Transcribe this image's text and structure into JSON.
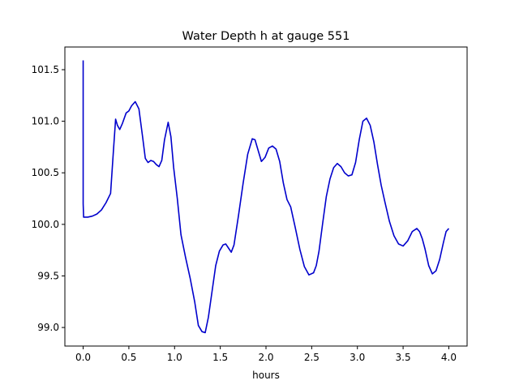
{
  "chart_data": {
    "type": "line",
    "title": "Water Depth h at gauge 551",
    "xlabel": "hours",
    "ylabel": "",
    "xlim": [
      -0.2,
      4.2
    ],
    "ylim": [
      98.82,
      101.72
    ],
    "xticks": [
      0.0,
      0.5,
      1.0,
      1.5,
      2.0,
      2.5,
      3.0,
      3.5,
      4.0
    ],
    "xtick_labels": [
      "0.0",
      "0.5",
      "1.0",
      "1.5",
      "2.0",
      "2.5",
      "3.0",
      "3.5",
      "4.0"
    ],
    "yticks": [
      99.0,
      99.5,
      100.0,
      100.5,
      101.0,
      101.5
    ],
    "ytick_labels": [
      "99.0",
      "99.5",
      "100.0",
      "100.5",
      "101.0",
      "101.5"
    ],
    "grid": false,
    "line_color": "#0000cc",
    "series": [
      {
        "x": [
          0.0,
          0.0,
          0.005,
          0.05,
          0.1,
          0.15,
          0.2,
          0.25,
          0.3,
          0.33,
          0.355,
          0.375,
          0.4,
          0.43,
          0.47,
          0.5,
          0.53,
          0.57,
          0.61,
          0.65,
          0.68,
          0.71,
          0.74,
          0.77,
          0.8,
          0.83,
          0.86,
          0.89,
          0.93,
          0.96,
          0.99,
          1.03,
          1.07,
          1.12,
          1.17,
          1.22,
          1.26,
          1.3,
          1.335,
          1.37,
          1.41,
          1.45,
          1.49,
          1.53,
          1.56,
          1.59,
          1.62,
          1.65,
          1.7,
          1.75,
          1.8,
          1.85,
          1.88,
          1.91,
          1.95,
          1.99,
          2.03,
          2.07,
          2.11,
          2.15,
          2.19,
          2.23,
          2.27,
          2.32,
          2.37,
          2.42,
          2.47,
          2.52,
          2.55,
          2.58,
          2.62,
          2.66,
          2.7,
          2.74,
          2.78,
          2.82,
          2.86,
          2.9,
          2.94,
          2.98,
          3.02,
          3.06,
          3.1,
          3.14,
          3.18,
          3.22,
          3.26,
          3.3,
          3.35,
          3.4,
          3.45,
          3.5,
          3.55,
          3.6,
          3.65,
          3.68,
          3.71,
          3.74,
          3.78,
          3.82,
          3.86,
          3.9,
          3.94,
          3.97,
          4.0
        ],
        "y": [
          101.59,
          100.2,
          100.07,
          100.07,
          100.08,
          100.1,
          100.14,
          100.21,
          100.3,
          100.7,
          101.02,
          100.96,
          100.92,
          100.98,
          101.08,
          101.1,
          101.15,
          101.19,
          101.12,
          100.85,
          100.64,
          100.6,
          100.62,
          100.61,
          100.58,
          100.56,
          100.62,
          100.82,
          100.99,
          100.85,
          100.55,
          100.25,
          99.9,
          99.68,
          99.48,
          99.25,
          99.02,
          98.96,
          98.95,
          99.1,
          99.35,
          99.6,
          99.74,
          99.8,
          99.81,
          99.77,
          99.73,
          99.8,
          100.09,
          100.4,
          100.68,
          100.83,
          100.82,
          100.73,
          100.61,
          100.65,
          100.74,
          100.76,
          100.73,
          100.61,
          100.4,
          100.24,
          100.17,
          99.97,
          99.76,
          99.59,
          99.51,
          99.53,
          99.6,
          99.74,
          100.01,
          100.27,
          100.44,
          100.55,
          100.59,
          100.56,
          100.5,
          100.47,
          100.48,
          100.6,
          100.82,
          101.0,
          101.03,
          100.96,
          100.8,
          100.58,
          100.38,
          100.22,
          100.03,
          99.89,
          99.81,
          99.79,
          99.84,
          99.93,
          99.96,
          99.93,
          99.86,
          99.76,
          99.6,
          99.52,
          99.55,
          99.66,
          99.82,
          99.93,
          99.96
        ]
      }
    ]
  }
}
